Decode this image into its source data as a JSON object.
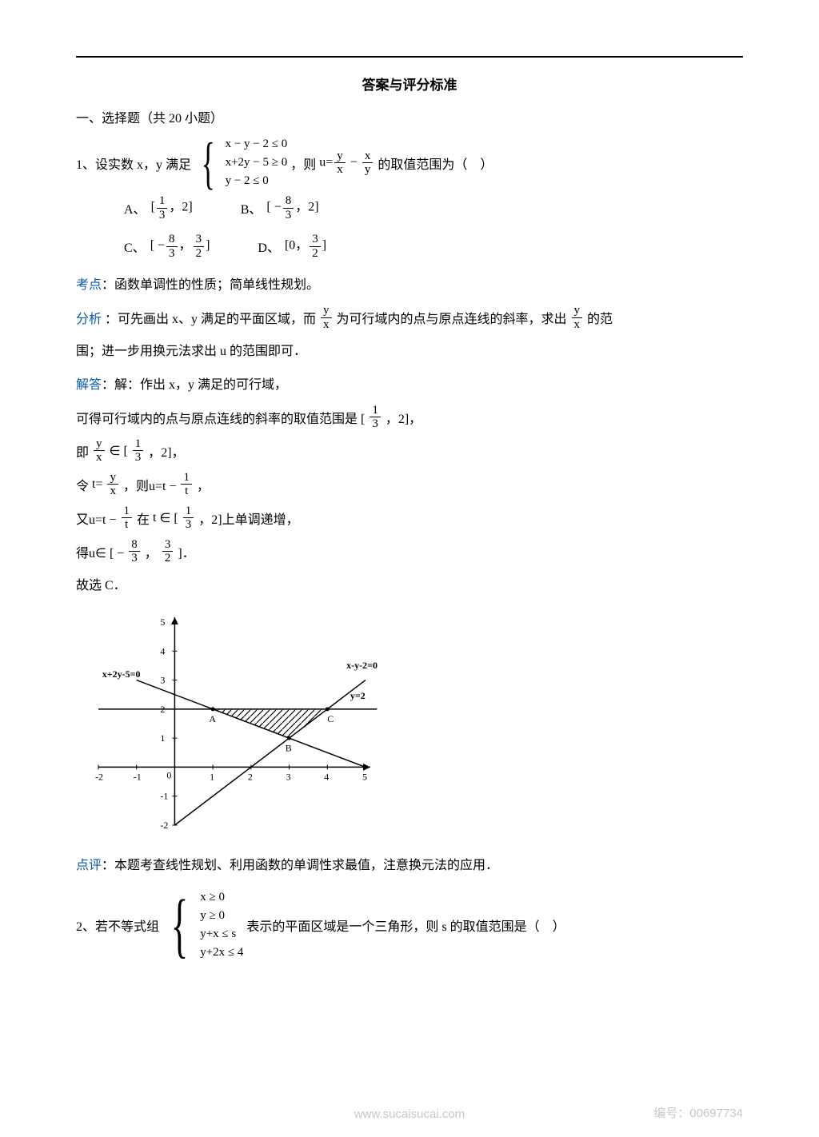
{
  "header": {
    "title": "答案与评分标准"
  },
  "section": {
    "heading": "一、选择题（共 20 小题）"
  },
  "q1": {
    "prefix": "1、设实数 x，y 满足",
    "system": [
      "x − y − 2 ≤ 0",
      "x+2y − 5 ≥ 0",
      "y − 2 ≤ 0"
    ],
    "mid1": "，则",
    "uexpr": "u=",
    "mid2": "的取值范围为（ ）",
    "options": {
      "A": "A、",
      "A_val": [
        "[",
        "1",
        "3",
        "，2]"
      ],
      "B": "B、",
      "B_val": [
        "[ −",
        "8",
        "3",
        "，2]"
      ],
      "C": "C、",
      "C_val": [
        "[ −",
        "8",
        "3",
        "，",
        "3",
        "2",
        "]"
      ],
      "D": "D、",
      "D_val": [
        "[0，",
        "3",
        "2",
        "]"
      ]
    }
  },
  "kaodian": {
    "label": "考点",
    "text": "：函数单调性的性质；简单线性规划。"
  },
  "fenxi": {
    "label": "分析",
    "pre": "：可先画出 x、y 满足的平面区域，而",
    "mid": "为可行域内的点与原点连线的斜率，求出",
    "post": "的范",
    "line2": "围；进一步用换元法求出 u 的范围即可．"
  },
  "jieda": {
    "label": "解答",
    "l1": "：解：作出 x，y 满足的可行域，",
    "l2_pre": "可得可行域内的点与原点连线的斜率的取值范围是 [",
    "l2_post": "，2]，",
    "l3_pre": "即",
    "l3_mid": " ∈ [",
    "l3_post": "，2]，",
    "l4_pre": "令",
    "l4_mid1": "，则u=t −",
    "l4_post": "，",
    "l5_pre": "又u=t −",
    "l5_mid": "在",
    "l5_in": " ∈ [",
    "l5_post": "，2]上单调递增，",
    "l6_pre": "得u∈ [ −",
    "l6_mid": "，",
    "l6_post": "]．",
    "l7": "故选 C．"
  },
  "dianping": {
    "label": "点评",
    "text": "：本题考查线性规划、利用函数的单调性求最值，注意换元法的应用．"
  },
  "q2": {
    "prefix": "2、若不等式组",
    "system": [
      "x ≥ 0",
      "y ≥ 0",
      "y+x ≤ s",
      "y+2x ≤ 4"
    ],
    "post": "  表示的平面区域是一个三角形，则 s 的取值范围是（ ）"
  },
  "chart": {
    "type": "line-plot-feasible-region",
    "xlim": [
      -2,
      5
    ],
    "ylim": [
      -2,
      5
    ],
    "xticks": [
      -2,
      -1,
      0,
      1,
      2,
      3,
      4,
      5
    ],
    "yticks": [
      -2,
      -1,
      1,
      2,
      3,
      4,
      5
    ],
    "lines": [
      {
        "label": "x-y-2=0",
        "p1": [
          0,
          -2
        ],
        "p2": [
          5,
          3
        ],
        "color": "#000000"
      },
      {
        "label": "x+2y-5=0",
        "p1": [
          -1,
          3
        ],
        "p2": [
          5,
          0
        ],
        "color": "#000000"
      },
      {
        "label": "y=2",
        "p1": [
          -2,
          2
        ],
        "p2": [
          5.3,
          2
        ],
        "color": "#000000"
      }
    ],
    "points": {
      "A": [
        1,
        2
      ],
      "B": [
        3,
        1
      ],
      "C": [
        4,
        2
      ]
    },
    "label_pos": {
      "x-y-2=0": [
        4.5,
        3.4
      ],
      "x+2y-5=0": [
        -1.9,
        3.1
      ],
      "y=2": [
        4.6,
        2.35
      ],
      "A": [
        0.9,
        1.55
      ],
      "B": [
        2.9,
        0.55
      ],
      "C": [
        4.0,
        1.55
      ]
    },
    "hatch_region": [
      [
        1,
        2
      ],
      [
        3,
        1
      ],
      [
        4,
        2
      ]
    ],
    "axis_color": "#000000",
    "background": "#ffffff",
    "font_size": 12,
    "line_width": 1.5,
    "arrow_size": 8
  },
  "watermark": {
    "center": "www.sucaisucai.com",
    "id_label": "编号：",
    "id": "00697734"
  }
}
